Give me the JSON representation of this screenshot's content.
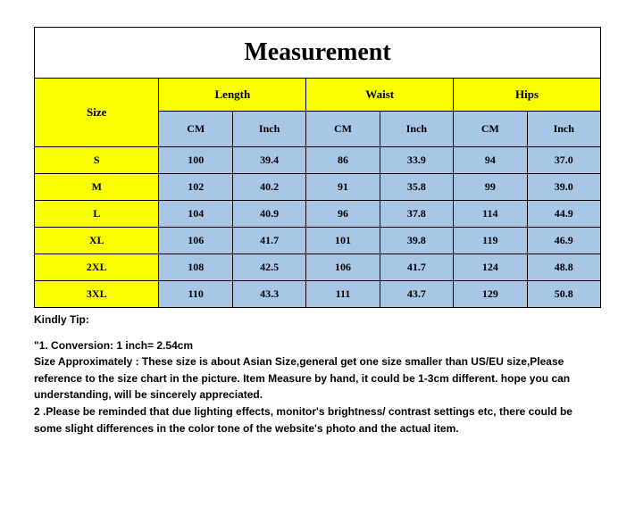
{
  "title": "Measurement",
  "headers": {
    "size": "Size",
    "groups": [
      "Length",
      "Waist",
      "Hips"
    ],
    "units": [
      "CM",
      "Inch",
      "CM",
      "Inch",
      "CM",
      "Inch"
    ]
  },
  "rows": [
    {
      "size": "S",
      "vals": [
        "100",
        "39.4",
        "86",
        "33.9",
        "94",
        "37.0"
      ]
    },
    {
      "size": "M",
      "vals": [
        "102",
        "40.2",
        "91",
        "35.8",
        "99",
        "39.0"
      ]
    },
    {
      "size": "L",
      "vals": [
        "104",
        "40.9",
        "96",
        "37.8",
        "114",
        "44.9"
      ]
    },
    {
      "size": "XL",
      "vals": [
        "106",
        "41.7",
        "101",
        "39.8",
        "119",
        "46.9"
      ]
    },
    {
      "size": "2XL",
      "vals": [
        "108",
        "42.5",
        "106",
        "41.7",
        "124",
        "48.8"
      ]
    },
    {
      "size": "3XL",
      "vals": [
        "110",
        "43.3",
        "111",
        "43.7",
        "129",
        "50.8"
      ]
    }
  ],
  "notes": {
    "tip_label": "Kindly Tip:",
    "line1": "\"1. Conversion:  1 inch= 2.54cm",
    "line2": "Size Approximately :  These size is about Asian Size,general get one size smaller than US/EU size,Please reference to the size chart in the picture. Item Measure by hand, it could be 1-3cm different. hope you can understanding, will be sincerely appreciated.",
    "line3": "2 .Please be reminded that due lighting effects, monitor's brightness/ contrast settings etc, there could be some slight differences in the color tone of the website's photo and the actual item."
  },
  "colors": {
    "yellow": "#faff00",
    "blue": "#a8c6e6",
    "border": "#000000",
    "background": "#ffffff"
  },
  "layout": {
    "col_widths_pct": [
      22,
      13,
      13,
      13,
      13,
      13,
      13
    ]
  }
}
